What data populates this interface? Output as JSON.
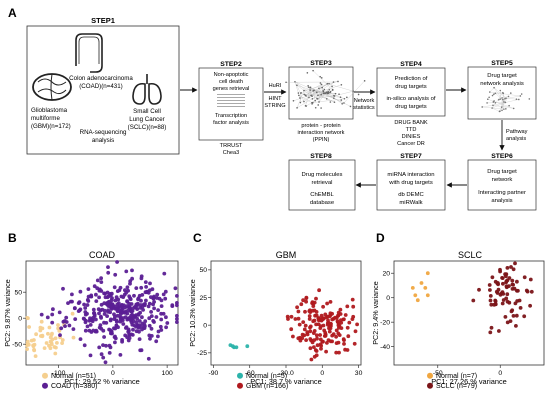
{
  "panels": {
    "a": "A",
    "b": "B",
    "c": "C",
    "d": "D"
  },
  "workflow": {
    "step1": {
      "title": "STEP1",
      "colon": "Colon adenocarcinoma",
      "colon_n": "(COAD)(n=431)",
      "gbm_1": "Glioblastoma",
      "gbm_2": "multiforme",
      "gbm_3": "(GBM)(n=172)",
      "sclc_1": "Small Cell",
      "sclc_2": "Lung Cancer",
      "sclc_3": "(SCLC)(n=88)",
      "rnaseq_1": "RNA-sequencing",
      "rnaseq_2": "analysis"
    },
    "step2": {
      "title": "STEP2",
      "l1": "Non-apoptotic",
      "l2": "cell death",
      "l3": "genes retrieval",
      "l4": "Transcription",
      "l5": "factor analysis",
      "s1": "TRRUST",
      "s2": "Chea3"
    },
    "arrow2": {
      "l1": "HuRI",
      "l2": "HINT",
      "l3": "STRING"
    },
    "step3": {
      "title": "STEP3",
      "c1": "protein - protein",
      "c2": "interaction network",
      "c3": "(PPIN)"
    },
    "arrow3": {
      "l1": "Network",
      "l2": "statistics"
    },
    "step4": {
      "title": "STEP4",
      "l1": "Prediction of",
      "l2": "drug targets",
      "l3": "in-silico analysis of",
      "l4": "drug targets",
      "s1": "DRUG BANK",
      "s2": "TTD",
      "s3": "DINIES",
      "s4": "Cancer DR"
    },
    "step5": {
      "title": "STEP5",
      "l1": "Drug target",
      "l2": "network analysis"
    },
    "arrow5": {
      "l1": "Pathway",
      "l2": "analysis"
    },
    "step6": {
      "title": "STEP6",
      "l1": "Drug target",
      "l2": "network",
      "l3": "Interacting partner",
      "l4": "analysis"
    },
    "step7": {
      "title": "STEP7",
      "l1": "miRNA interaction",
      "l2": "with drug targets",
      "s1": "db DEMC",
      "s2": "miRWalk"
    },
    "step8": {
      "title": "STEP8",
      "l1": "Drug molecules",
      "l2": "retrieval",
      "s1": "ChEMBL",
      "s2": "database"
    }
  },
  "colors": {
    "normal": "#f5cf8e",
    "normal_gbm": "#2bb3aa",
    "coad": "#5b1f93",
    "gbm": "#b0191e",
    "sclc": "#7b1418",
    "normal_sclc": "#f0a640"
  },
  "chart_data": [
    {
      "panel": "B",
      "type": "scatter",
      "title": "COAD",
      "xlabel": "PC1: 29.52 % variance",
      "ylabel": "PC2: 9.87% variance",
      "xticks": [
        -100,
        0,
        100
      ],
      "yticks": [
        -50,
        0,
        50
      ],
      "xlim": [
        -160,
        120
      ],
      "ylim": [
        -90,
        110
      ],
      "legend": [
        {
          "label": "Normal (n=51)",
          "color": "#f5cf8e"
        },
        {
          "label": "COAD (n=380)",
          "color": "#5b1f93"
        }
      ],
      "series": [
        {
          "name": "Normal (n=51)",
          "color": "#f5cf8e",
          "n": 51,
          "center": [
            -125,
            -35
          ],
          "spread": [
            22,
            22
          ],
          "seed": 11
        },
        {
          "name": "COAD (n=380)",
          "color": "#5b1f93",
          "n": 380,
          "center": [
            10,
            10
          ],
          "spread": [
            48,
            32
          ],
          "seed": 23
        }
      ]
    },
    {
      "panel": "C",
      "type": "scatter",
      "title": "GBM",
      "xlabel": "PC1: 38.7 % variance",
      "ylabel": "PC2: 10.3% variance",
      "xticks": [
        -90,
        -60,
        -30,
        0,
        30
      ],
      "xticklabels": [
        "-90",
        "-60",
        "-30.0",
        "0",
        "30"
      ],
      "yticks": [
        -25,
        0,
        25,
        50
      ],
      "xlim": [
        -92,
        32
      ],
      "ylim": [
        -36,
        58
      ],
      "legend": [
        {
          "label": "Normal (n=5)",
          "color": "#2bb3aa"
        },
        {
          "label": "GBM (n=166)",
          "color": "#b0191e"
        }
      ],
      "series": [
        {
          "name": "Normal (n=5)",
          "color": "#2bb3aa",
          "points": [
            [
              -76,
              -18
            ],
            [
              -74,
              -19
            ],
            [
              -73,
              -20
            ],
            [
              -71,
              -20
            ],
            [
              -62,
              -19
            ]
          ]
        },
        {
          "name": "GBM (n=166)",
          "color": "#b0191e",
          "n": 166,
          "center": [
            0,
            0
          ],
          "spread": [
            12,
            13
          ],
          "seed": 37
        }
      ]
    },
    {
      "panel": "D",
      "type": "scatter",
      "title": "SCLC",
      "xlabel": "PC1: 27.26 % variance",
      "ylabel": "PC2: 9.4% variance",
      "xticks": [
        -50,
        0
      ],
      "yticks": [
        -40,
        -20,
        0,
        20
      ],
      "xlim": [
        -85,
        35
      ],
      "ylim": [
        -55,
        30
      ],
      "legend": [
        {
          "label": "Normal (n=7)",
          "color": "#f0a640"
        },
        {
          "label": "SCLC (n=79)",
          "color": "#7b1418"
        }
      ],
      "series": [
        {
          "name": "Normal (n=7)",
          "color": "#f0a640",
          "points": [
            [
              -70,
              8
            ],
            [
              -68,
              2
            ],
            [
              -66,
              -2
            ],
            [
              -63,
              12
            ],
            [
              -60,
              8
            ],
            [
              -58,
              2
            ],
            [
              -58,
              20
            ]
          ]
        },
        {
          "name": "SCLC (n=79)",
          "color": "#7b1418",
          "n": 79,
          "center": [
            5,
            5
          ],
          "spread": [
            10,
            14
          ],
          "seed": 53
        }
      ]
    }
  ]
}
